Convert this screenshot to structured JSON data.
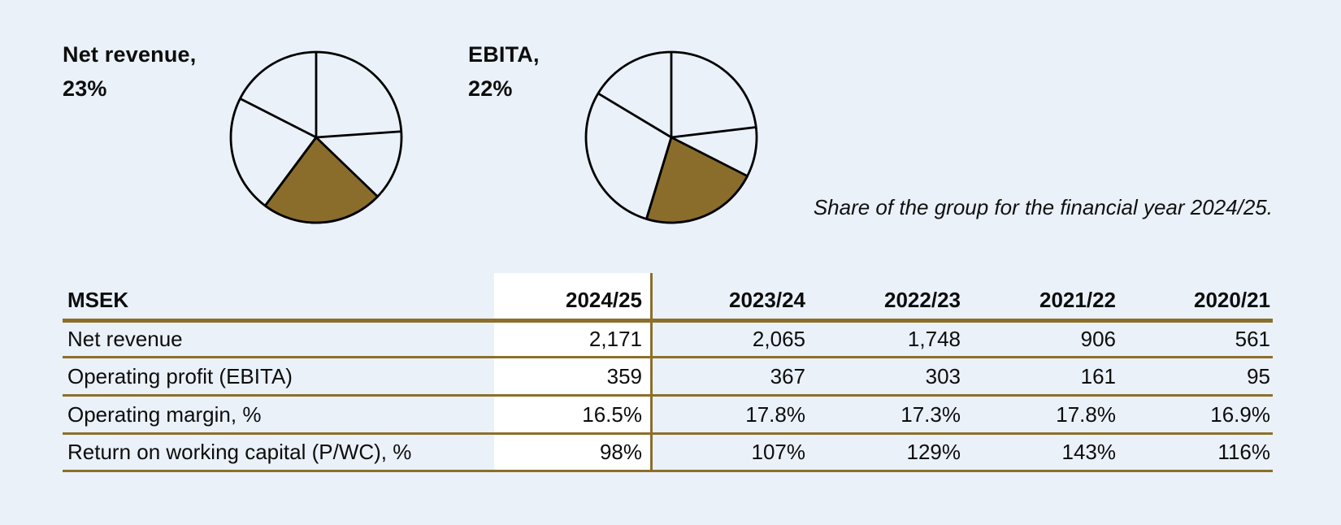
{
  "caption": "Share of the group for the financial year 2024/25.",
  "colors": {
    "background": "#eaf1f9",
    "accent_rule": "#8c6f2b",
    "pie_fill": "#8a6d2b",
    "pie_stroke": "#000000",
    "highlight_column_bg": "#ffffff",
    "text": "#0d0d0d"
  },
  "chart_data": [
    {
      "type": "pie",
      "title": "Net revenue, 23%",
      "label_line1": "Net revenue,",
      "label_line2": "23%",
      "highlight": {
        "label": "Net revenue",
        "value_pct": 23
      },
      "slices_pct": [
        23.9,
        13.3,
        23.0,
        22.3,
        17.5
      ],
      "filled_slice_index": 2,
      "start_angle_deg": 0,
      "direction": "clockwise"
    },
    {
      "type": "pie",
      "title": "EBITA, 22%",
      "label_line1": "EBITA,",
      "label_line2": "22%",
      "highlight": {
        "label": "EBITA",
        "value_pct": 22
      },
      "slices_pct": [
        23.1,
        9.4,
        22.2,
        28.9,
        16.4
      ],
      "filled_slice_index": 2,
      "start_angle_deg": 0,
      "direction": "clockwise"
    },
    {
      "type": "table",
      "unit": "MSEK",
      "columns": [
        "2024/25",
        "2023/24",
        "2022/23",
        "2021/22",
        "2020/21"
      ],
      "highlighted_column": "2024/25",
      "rows": [
        {
          "label": "Net revenue",
          "values": [
            "2,171",
            "2,065",
            "1,748",
            "906",
            "561"
          ]
        },
        {
          "label": "Operating profit (EBITA)",
          "values": [
            "359",
            "367",
            "303",
            "161",
            "95"
          ]
        },
        {
          "label": "Operating margin, %",
          "values": [
            "16.5%",
            "17.8%",
            "17.3%",
            "17.8%",
            "16.9%"
          ]
        },
        {
          "label": "Return on working capital (P/WC), %",
          "values": [
            "98%",
            "107%",
            "129%",
            "143%",
            "116%"
          ]
        }
      ]
    }
  ]
}
